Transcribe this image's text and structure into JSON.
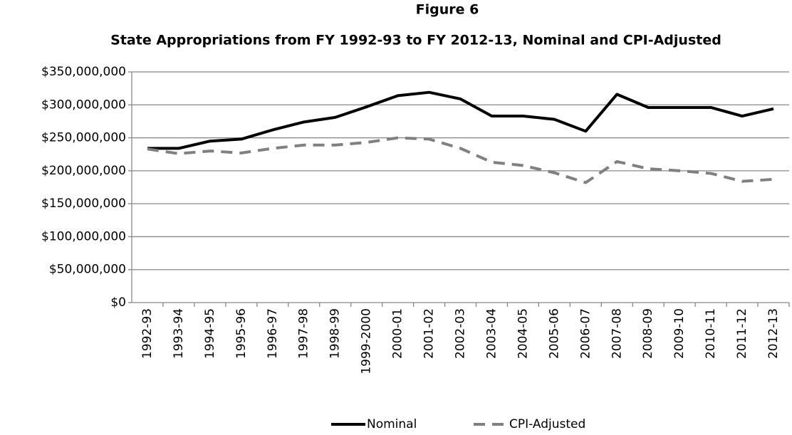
{
  "chart_data": {
    "type": "line",
    "title": "Figure 6",
    "subtitle": "State Appropriations from FY 1992-93 to FY 2012-13, Nominal and CPI-Adjusted",
    "categories": [
      "1992-93",
      "1993-94",
      "1994-95",
      "1995-96",
      "1996-97",
      "1997-98",
      "1998-99",
      "1999-2000",
      "2000-01",
      "2001-02",
      "2002-03",
      "2003-04",
      "2004-05",
      "2005-06",
      "2006-07",
      "2007-08",
      "2008-09",
      "2009-10",
      "2010-11",
      "2011-12",
      "2012-13"
    ],
    "series": [
      {
        "name": "Nominal",
        "color": "#000000",
        "dash": "solid",
        "values": [
          234000000,
          234000000,
          245000000,
          248000000,
          262000000,
          274000000,
          281000000,
          297000000,
          314000000,
          319000000,
          309000000,
          283000000,
          283000000,
          278000000,
          260000000,
          316000000,
          296000000,
          296000000,
          296000000,
          283000000,
          294000000
        ]
      },
      {
        "name": "CPI-Adjusted",
        "color": "#808080",
        "dash": "dashed",
        "values": [
          233000000,
          226000000,
          230000000,
          227000000,
          234000000,
          239000000,
          239000000,
          243000000,
          250000000,
          248000000,
          234000000,
          213000000,
          208000000,
          197000000,
          182000000,
          214000000,
          203000000,
          200000000,
          196000000,
          184000000,
          187000000
        ]
      }
    ],
    "ylim": [
      0,
      350000000
    ],
    "yticks": [
      {
        "value": 0,
        "label": "$0"
      },
      {
        "value": 50000000,
        "label": "$50,000,000"
      },
      {
        "value": 100000000,
        "label": "$100,000,000"
      },
      {
        "value": 150000000,
        "label": "$150,000,000"
      },
      {
        "value": 200000000,
        "label": "$200,000,000"
      },
      {
        "value": 250000000,
        "label": "$250,000,000"
      },
      {
        "value": 300000000,
        "label": "$300,000,000"
      },
      {
        "value": 350000000,
        "label": "$350,000,000"
      }
    ],
    "grid": true,
    "legend": "bottom"
  }
}
